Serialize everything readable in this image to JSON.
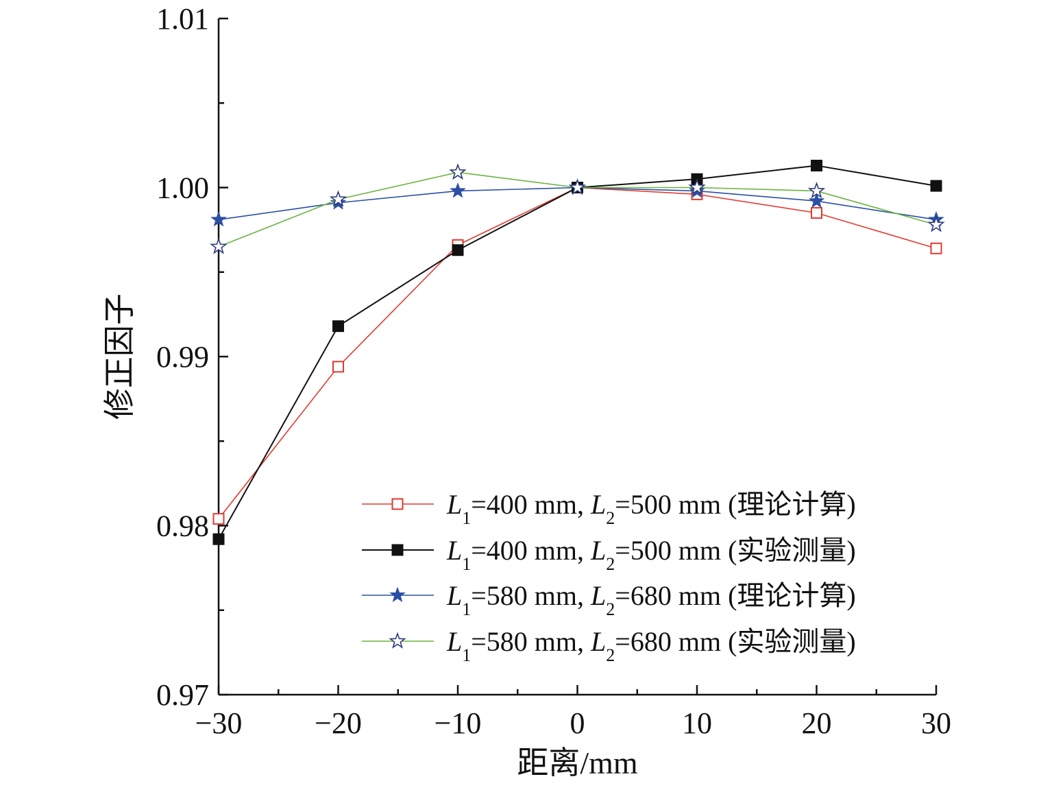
{
  "chart_data": {
    "type": "line",
    "xlabel": "距离/mm",
    "ylabel": "修正因子",
    "xlim": [
      -30,
      30
    ],
    "ylim": [
      0.97,
      1.01
    ],
    "x": [
      -30,
      -20,
      -10,
      0,
      10,
      20,
      30
    ],
    "xticks": [
      -30,
      -20,
      -10,
      0,
      10,
      20,
      30
    ],
    "xtick_labels": [
      "−30",
      "−20",
      "−10",
      "0",
      "10",
      "20",
      "30"
    ],
    "yticks": [
      0.97,
      0.98,
      0.99,
      1.0,
      1.01
    ],
    "ytick_labels": [
      "0.97",
      "0.98",
      "0.99",
      "1.00",
      "1.01"
    ],
    "grid": false,
    "legend_position": "bottom-right",
    "series": [
      {
        "name": "L1=400 mm, L2=500 mm (理论计算)",
        "legend": {
          "l1": "L",
          "l1_sub": "1",
          "mid": "=400 mm, ",
          "l2": "L",
          "l2_sub": "2",
          "tail": "=500 mm (理论计算)"
        },
        "color": "#e03a2f",
        "marker": "square-open",
        "values": [
          0.9804,
          0.9894,
          0.9966,
          1.0,
          0.9996,
          0.9985,
          0.9964
        ]
      },
      {
        "name": "L1=400 mm, L2=500 mm (实验测量)",
        "legend": {
          "l1": "L",
          "l1_sub": "1",
          "mid": "=400 mm, ",
          "l2": "L",
          "l2_sub": "2",
          "tail": "=500 mm (实验测量)"
        },
        "color": "#111111",
        "marker": "square-filled",
        "values": [
          0.9792,
          0.9918,
          0.9963,
          1.0,
          1.0005,
          1.0013,
          1.0001
        ]
      },
      {
        "name": "L1=580 mm, L2=680 mm (理论计算)",
        "legend": {
          "l1": "L",
          "l1_sub": "1",
          "mid": "=580 mm, ",
          "l2": "L",
          "l2_sub": "2",
          "tail": "=680 mm (理论计算)"
        },
        "color": "#2a4fa3",
        "marker": "star-filled",
        "values": [
          0.9981,
          0.9991,
          0.9998,
          1.0,
          0.9998,
          0.9992,
          0.9981
        ]
      },
      {
        "name": "L1=580 mm, L2=680 mm (实验测量)",
        "legend": {
          "l1": "L",
          "l1_sub": "1",
          "mid": "=580 mm, ",
          "l2": "L",
          "l2_sub": "2",
          "tail": "=680 mm (实验测量)"
        },
        "color": "#6db33f",
        "marker": "star-open",
        "marker_stroke": "#2d3a78",
        "values": [
          0.9965,
          0.9993,
          1.0009,
          1.0,
          1.0,
          0.9998,
          0.9978
        ]
      }
    ]
  }
}
